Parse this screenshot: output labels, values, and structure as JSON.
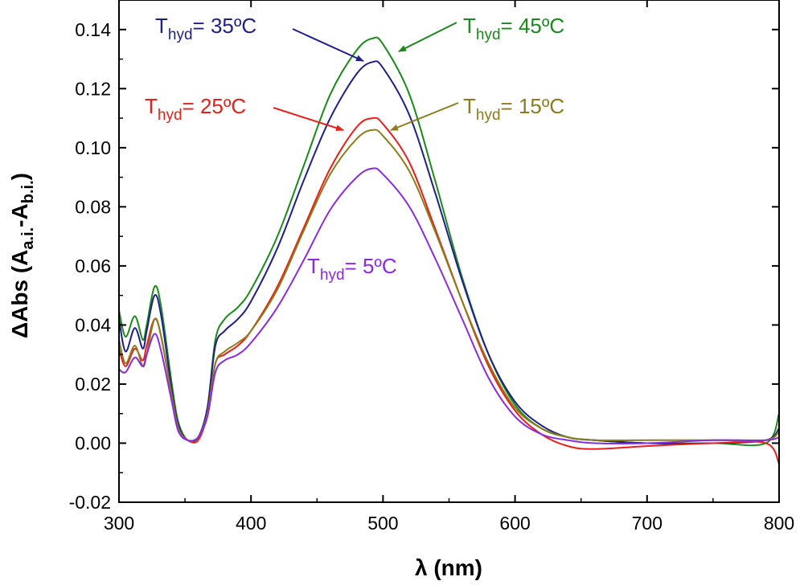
{
  "chart_data": {
    "type": "line",
    "title": "",
    "xlabel": "λ (nm)",
    "ylabel": "ΔAbs (Aₐ.ᵢ.-Aᵦ.ᵢ.)",
    "ylabel_parts": {
      "prefix": "ΔAbs (A",
      "sub1": "a.i.",
      "mid": "-A",
      "sub2": "b.i.",
      "suffix": ")"
    },
    "xlim": [
      300,
      800
    ],
    "ylim": [
      -0.02,
      0.15
    ],
    "xticks": [
      "300",
      "400",
      "500",
      "600",
      "700",
      "800"
    ],
    "yticks": [
      "-0.02",
      "0.00",
      "0.02",
      "0.04",
      "0.06",
      "0.08",
      "0.10",
      "0.12",
      "0.14"
    ],
    "grid": false,
    "legend": "none",
    "series": [
      {
        "name": "Thyd = 45ºC",
        "color": "#1a8a1a",
        "x": [
          300,
          305,
          312,
          318,
          321,
          327,
          332,
          340,
          345,
          352,
          360,
          367,
          373,
          380,
          390,
          400,
          420,
          440,
          460,
          480,
          492,
          500,
          520,
          540,
          560,
          580,
          600,
          620,
          640,
          660,
          700,
          750,
          790,
          800
        ],
        "y": [
          0.045,
          0.036,
          0.043,
          0.035,
          0.04,
          0.053,
          0.046,
          0.02,
          0.007,
          0.001,
          0.002,
          0.012,
          0.035,
          0.042,
          0.046,
          0.052,
          0.07,
          0.094,
          0.118,
          0.133,
          0.137,
          0.135,
          0.118,
          0.088,
          0.056,
          0.03,
          0.013,
          0.005,
          0.002,
          0.001,
          0.0,
          0.0,
          0.0,
          0.01
        ]
      },
      {
        "name": "Thyd = 35ºC",
        "color": "#1f1f8a",
        "x": [
          300,
          305,
          312,
          318,
          321,
          327,
          332,
          340,
          345,
          352,
          360,
          367,
          373,
          380,
          390,
          400,
          420,
          440,
          460,
          480,
          492,
          500,
          520,
          540,
          560,
          580,
          600,
          620,
          640,
          660,
          700,
          750,
          790,
          800
        ],
        "y": [
          0.042,
          0.031,
          0.039,
          0.032,
          0.038,
          0.05,
          0.043,
          0.018,
          0.006,
          0.001,
          0.002,
          0.012,
          0.033,
          0.038,
          0.042,
          0.048,
          0.066,
          0.089,
          0.11,
          0.125,
          0.129,
          0.127,
          0.111,
          0.084,
          0.055,
          0.03,
          0.014,
          0.006,
          0.002,
          0.001,
          0.0,
          0.0,
          0.001,
          0.005
        ]
      },
      {
        "name": "Thyd = 25ºC",
        "color": "#e8201c",
        "x": [
          300,
          305,
          312,
          318,
          321,
          327,
          332,
          340,
          345,
          352,
          360,
          367,
          373,
          380,
          390,
          400,
          420,
          440,
          460,
          480,
          492,
          500,
          520,
          540,
          560,
          580,
          600,
          620,
          640,
          660,
          700,
          750,
          790,
          800
        ],
        "y": [
          0.032,
          0.026,
          0.032,
          0.028,
          0.033,
          0.042,
          0.036,
          0.016,
          0.005,
          0.001,
          0.001,
          0.01,
          0.027,
          0.03,
          0.033,
          0.038,
          0.053,
          0.073,
          0.093,
          0.107,
          0.11,
          0.108,
          0.095,
          0.072,
          0.048,
          0.026,
          0.011,
          0.003,
          -0.001,
          -0.002,
          -0.001,
          0.0,
          0.0,
          -0.007
        ]
      },
      {
        "name": "Thyd = 15ºC",
        "color": "#8a7d1a",
        "x": [
          300,
          305,
          312,
          318,
          321,
          327,
          332,
          340,
          345,
          352,
          360,
          367,
          373,
          380,
          390,
          400,
          420,
          440,
          460,
          480,
          492,
          500,
          520,
          540,
          560,
          580,
          600,
          620,
          640,
          660,
          700,
          750,
          790,
          800
        ],
        "y": [
          0.035,
          0.027,
          0.033,
          0.026,
          0.03,
          0.042,
          0.036,
          0.016,
          0.005,
          0.001,
          0.002,
          0.01,
          0.027,
          0.031,
          0.034,
          0.038,
          0.052,
          0.072,
          0.091,
          0.103,
          0.106,
          0.104,
          0.092,
          0.071,
          0.048,
          0.027,
          0.012,
          0.005,
          0.002,
          0.001,
          0.001,
          0.001,
          0.001,
          0.004
        ]
      },
      {
        "name": "Thyd = 5ºC",
        "color": "#8a2be2",
        "x": [
          300,
          305,
          312,
          318,
          321,
          327,
          332,
          340,
          345,
          352,
          360,
          367,
          373,
          380,
          390,
          400,
          420,
          440,
          460,
          480,
          492,
          500,
          520,
          540,
          560,
          580,
          600,
          620,
          640,
          660,
          700,
          750,
          790,
          800
        ],
        "y": [
          0.025,
          0.024,
          0.029,
          0.026,
          0.03,
          0.037,
          0.031,
          0.014,
          0.004,
          0.001,
          0.002,
          0.009,
          0.024,
          0.028,
          0.03,
          0.034,
          0.046,
          0.062,
          0.079,
          0.09,
          0.093,
          0.091,
          0.08,
          0.062,
          0.042,
          0.022,
          0.009,
          0.003,
          0.001,
          0.0,
          0.0,
          0.001,
          0.001,
          0.002
        ]
      }
    ],
    "annotations": [
      {
        "main": "T",
        "sub": "hyd",
        "rest": "= 45ºC",
        "color": "#1a8a1a",
        "series": 0
      },
      {
        "main": "T",
        "sub": "hyd",
        "rest": "= 35ºC",
        "color": "#1f1f8a",
        "series": 1
      },
      {
        "main": "T",
        "sub": "hyd",
        "rest": "= 25ºC",
        "color": "#e8201c",
        "series": 2
      },
      {
        "main": "T",
        "sub": "hyd",
        "rest": "= 15ºC",
        "color": "#8a7d1a",
        "series": 3
      },
      {
        "main": "T",
        "sub": "hyd",
        "rest": "= 5ºC",
        "color": "#8a2be2",
        "series": 4
      }
    ]
  }
}
